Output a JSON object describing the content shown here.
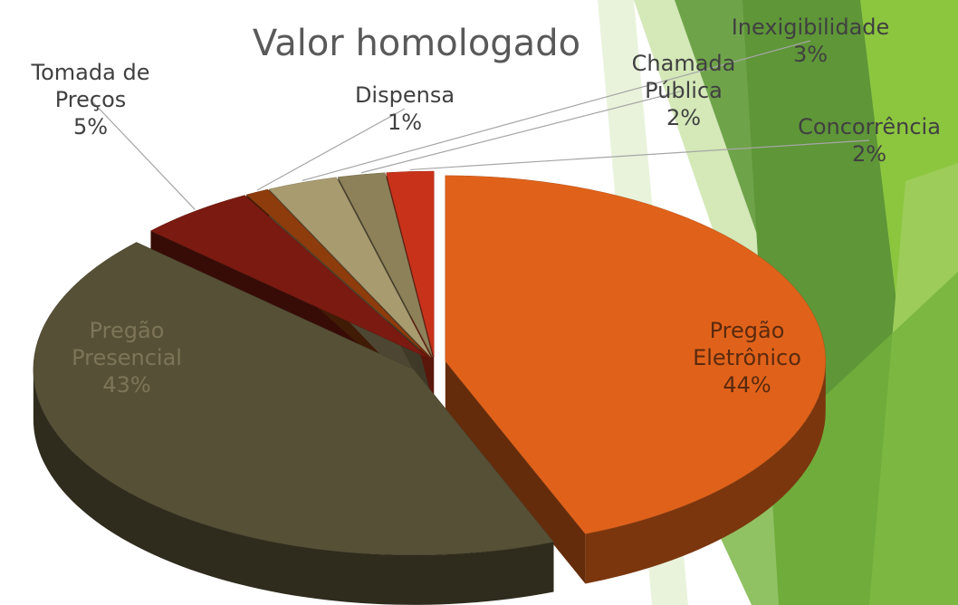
{
  "chart_data": {
    "type": "pie",
    "title": "Valor homologado",
    "categories": [
      "Pregão Eletrônico",
      "Pregão Presencial",
      "Tomada de Preços",
      "Dispensa",
      "Inexigibilidade",
      "Chamada Pública",
      "Concorrência"
    ],
    "values": [
      44,
      43,
      5,
      1,
      3,
      2,
      2
    ],
    "value_labels": [
      "44%",
      "43%",
      "5%",
      "1%",
      "3%",
      "2%",
      "2%"
    ],
    "colors": [
      "#e0621a",
      "#565036",
      "#7a1a10",
      "#8e3c0c",
      "#a99b70",
      "#8d8159",
      "#c9321a"
    ]
  }
}
